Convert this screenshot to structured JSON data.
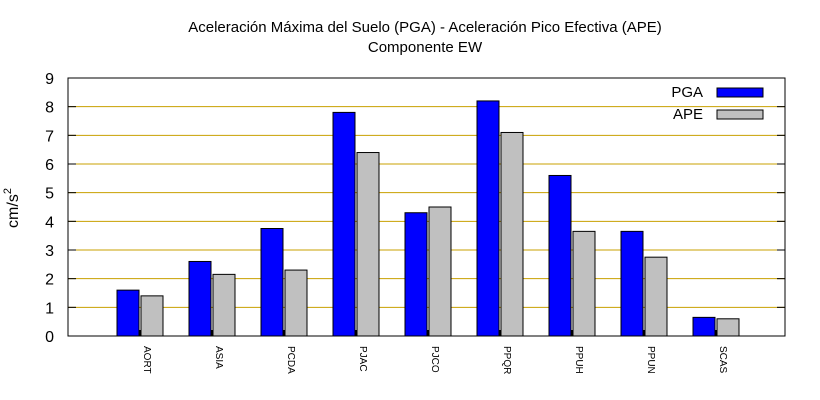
{
  "chart_data": {
    "type": "bar",
    "title": "Aceleración Máxima del Suelo (PGA) -  Aceleración Pico Efectiva (APE)",
    "subtitle": "Componente EW",
    "ylabel": "cm/s",
    "ylabel_sup": "2",
    "xlabel": "",
    "categories": [
      "AORT",
      "ASIA",
      "PCDA",
      "PJAC",
      "PJCO",
      "PPQR",
      "PPUH",
      "PPUN",
      "SCAS"
    ],
    "series": [
      {
        "name": "PGA",
        "color": "#0000ff",
        "values": [
          1.6,
          2.6,
          3.75,
          7.8,
          4.3,
          8.2,
          5.6,
          3.65,
          0.65
        ]
      },
      {
        "name": "APE",
        "color": "#c0c0c0",
        "values": [
          1.4,
          2.15,
          2.3,
          6.4,
          4.5,
          7.1,
          3.65,
          2.75,
          0.6
        ]
      }
    ],
    "ylim": [
      0,
      9
    ],
    "yticks": [
      "0",
      "1",
      "2",
      "3",
      "4",
      "5",
      "6",
      "7",
      "8",
      "9"
    ],
    "grid": true,
    "grid_color": "#c8a000",
    "legend_position": "top-right"
  }
}
